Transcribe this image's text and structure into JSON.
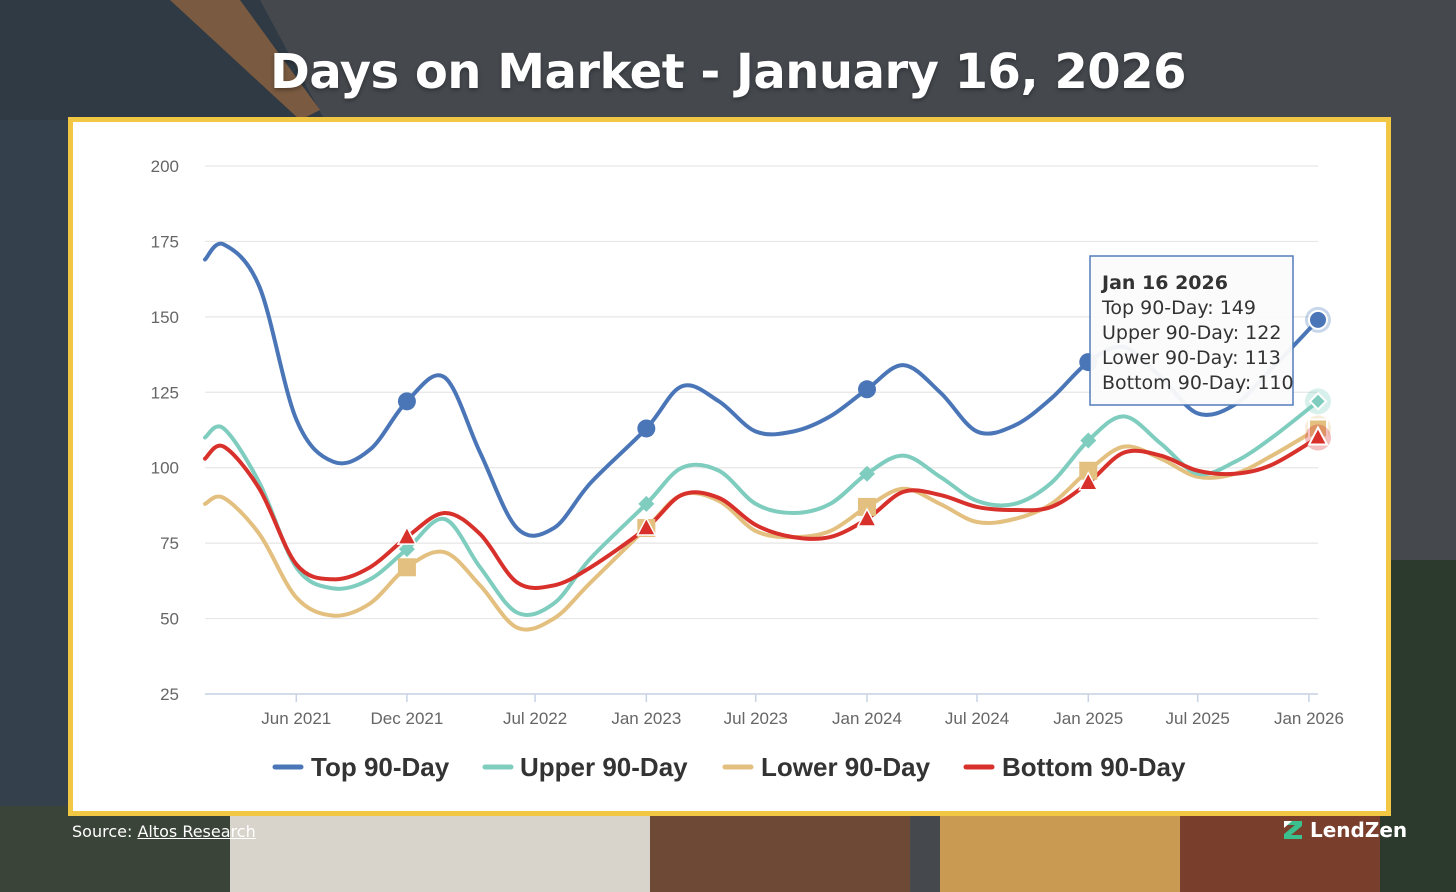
{
  "title": "Days on Market - January 16, 2026",
  "source": {
    "prefix": "Source: ",
    "link_label": "Altos Research"
  },
  "brand": {
    "name": "LendZen"
  },
  "colors": {
    "panel_border": "#f2c744",
    "top": "#4a76b8",
    "upper": "#7fcdbf",
    "lower": "#e3c07f",
    "bottom": "#d8302b"
  },
  "tooltip": {
    "title": "Jan 16 2026",
    "lines": [
      "Top 90-Day: 149",
      "Upper 90-Day: 122",
      "Lower 90-Day: 113",
      "Bottom 90-Day: 110"
    ]
  },
  "chart_data": {
    "type": "line",
    "title": "",
    "xlabel": "",
    "ylabel": "",
    "ylim": [
      25,
      200
    ],
    "yticks": [
      25,
      50,
      75,
      100,
      125,
      150,
      175,
      200
    ],
    "xlim": [
      "2021-01-01",
      "2026-01-16"
    ],
    "x_ticks": [
      {
        "label": "Jun 2021",
        "date": "2021-06-01"
      },
      {
        "label": "Dec 2021",
        "date": "2021-12-01"
      },
      {
        "label": "Jul 2022",
        "date": "2022-07-01"
      },
      {
        "label": "Jan 2023",
        "date": "2023-01-01"
      },
      {
        "label": "Jul 2023",
        "date": "2023-07-01"
      },
      {
        "label": "Jan 2024",
        "date": "2024-01-01"
      },
      {
        "label": "Jul 2024",
        "date": "2024-07-01"
      },
      {
        "label": "Jan 2025",
        "date": "2025-01-01"
      },
      {
        "label": "Jul 2025",
        "date": "2025-07-01"
      },
      {
        "label": "Jan 2026",
        "date": "2026-01-01"
      }
    ],
    "grid": true,
    "legend": "bottom",
    "x": [
      "2021-01-01",
      "2021-02-01",
      "2021-04-01",
      "2021-06-01",
      "2021-08-01",
      "2021-10-01",
      "2021-12-01",
      "2022-02-01",
      "2022-04-01",
      "2022-06-01",
      "2022-08-01",
      "2022-10-01",
      "2023-01-01",
      "2023-03-01",
      "2023-05-01",
      "2023-07-01",
      "2023-09-01",
      "2023-11-01",
      "2024-01-01",
      "2024-03-01",
      "2024-05-01",
      "2024-07-01",
      "2024-09-01",
      "2024-11-01",
      "2025-01-01",
      "2025-03-01",
      "2025-05-01",
      "2025-07-01",
      "2025-09-01",
      "2025-11-01",
      "2026-01-16"
    ],
    "series": [
      {
        "name": "Top 90-Day",
        "key": "top",
        "marker": "circle",
        "values": [
          169,
          174,
          160,
          116,
          102,
          106,
          122,
          130,
          105,
          80,
          80,
          95,
          113,
          127,
          122,
          112,
          112,
          117,
          126,
          134,
          125,
          112,
          114,
          123,
          135,
          140,
          130,
          118,
          121,
          133,
          149
        ],
        "markers": [
          6,
          12,
          18,
          24,
          30
        ]
      },
      {
        "name": "Upper 90-Day",
        "key": "upper",
        "marker": "diamond",
        "values": [
          110,
          113,
          95,
          67,
          60,
          63,
          73,
          83,
          67,
          52,
          55,
          70,
          88,
          100,
          99,
          88,
          85,
          88,
          98,
          104,
          97,
          89,
          88,
          95,
          109,
          117,
          108,
          98,
          102,
          110,
          122
        ],
        "markers": [
          6,
          12,
          18,
          24,
          30
        ]
      },
      {
        "name": "Lower 90-Day",
        "key": "lower",
        "marker": "square",
        "values": [
          88,
          90,
          78,
          57,
          51,
          55,
          67,
          72,
          61,
          47,
          50,
          62,
          80,
          91,
          89,
          79,
          77,
          79,
          87,
          93,
          88,
          82,
          83,
          88,
          99,
          107,
          103,
          97,
          98,
          104,
          113
        ],
        "markers": [
          6,
          12,
          18,
          24,
          30
        ]
      },
      {
        "name": "Bottom 90-Day",
        "key": "bottom",
        "marker": "triangle",
        "values": [
          103,
          107,
          93,
          68,
          63,
          67,
          77,
          85,
          78,
          62,
          61,
          67,
          80,
          91,
          90,
          81,
          77,
          77,
          83,
          92,
          91,
          87,
          86,
          87,
          95,
          105,
          104,
          99,
          98,
          101,
          110
        ],
        "markers": [
          6,
          12,
          18,
          24,
          30
        ]
      }
    ]
  }
}
